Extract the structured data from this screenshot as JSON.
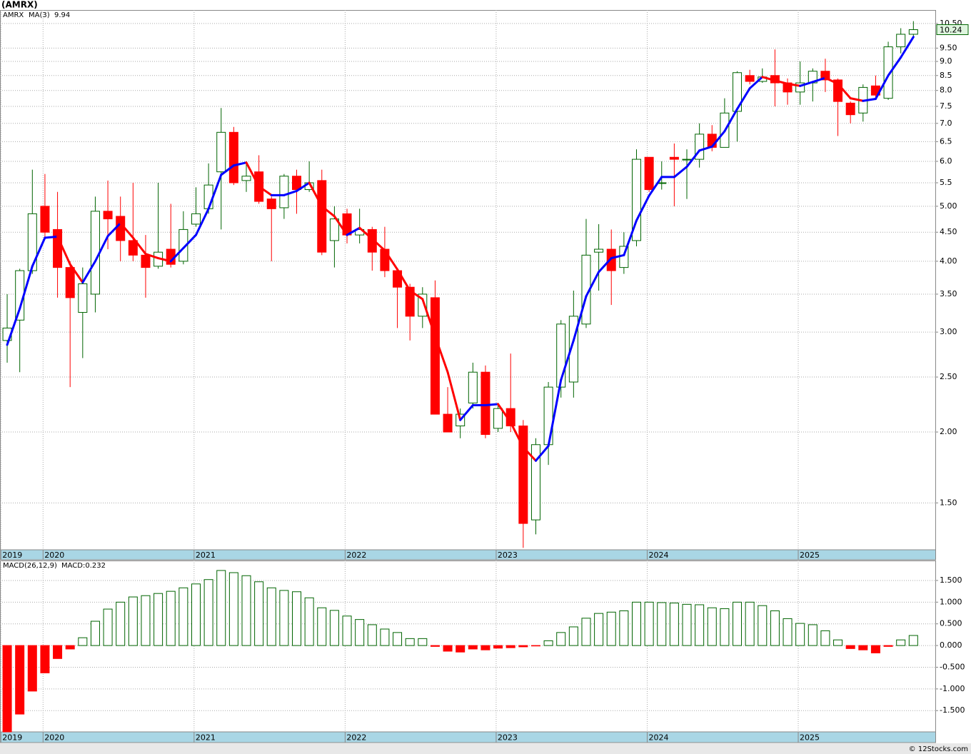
{
  "title": "(AMRX)",
  "footer": "© 12Stocks.com",
  "chart_data": [
    {
      "type": "candlestick",
      "symbol": "AMRX",
      "log_scale": true,
      "grid": true,
      "ylim": [
        1.24,
        11.09
      ],
      "yticks": [
        {
          "value": 10.5,
          "label": "10.50"
        },
        {
          "value": 9.5,
          "label": "9.50"
        },
        {
          "value": 9,
          "label": "9.0"
        },
        {
          "value": 8.5,
          "label": "8.5"
        },
        {
          "value": 8,
          "label": "8.0"
        },
        {
          "value": 7.5,
          "label": "7.5"
        },
        {
          "value": 7,
          "label": "7.0"
        },
        {
          "value": 6.5,
          "label": "6.5"
        },
        {
          "value": 6,
          "label": "6.0"
        },
        {
          "value": 5.5,
          "label": "5.5"
        },
        {
          "value": 5,
          "label": "5.00"
        },
        {
          "value": 4.5,
          "label": "4.50"
        },
        {
          "value": 4,
          "label": "4.00"
        },
        {
          "value": 3.5,
          "label": "3.50"
        },
        {
          "value": 3,
          "label": "3.00"
        },
        {
          "value": 2.5,
          "label": "2.50"
        },
        {
          "value": 2,
          "label": "2.00"
        },
        {
          "value": 1.5,
          "label": "1.50"
        }
      ],
      "xlim": [
        -0.57,
        73.74
      ],
      "xticks": [
        {
          "value": -0.5,
          "label": "2019"
        },
        {
          "value": 2.85,
          "label": "2020"
        },
        {
          "value": 14.85,
          "label": "2021"
        },
        {
          "value": 26.85,
          "label": "2022"
        },
        {
          "value": 38.85,
          "label": "2023"
        },
        {
          "value": 50.85,
          "label": "2024"
        },
        {
          "value": 62.85,
          "label": "2025"
        }
      ],
      "up_color": "#006400",
      "down_color": "#ff0000",
      "open": [
        2.9,
        3.15,
        3.85,
        5.0,
        4.55,
        3.9,
        3.25,
        3.5,
        4.9,
        4.8,
        4.35,
        4.1,
        3.92,
        4.2,
        4.0,
        4.65,
        4.95,
        5.75,
        6.75,
        5.55,
        5.75,
        5.15,
        4.97,
        5.65,
        5.35,
        5.55,
        4.35,
        4.85,
        4.45,
        4.55,
        4.2,
        3.85,
        3.6,
        3.2,
        3.45,
        2.15,
        2.05,
        2.25,
        2.55,
        2.03,
        2.2,
        2.05,
        1.4,
        1.9,
        2.4,
        2.45,
        3.1,
        4.15,
        4.2,
        3.9,
        4.35,
        6.1,
        5.5,
        6.1,
        6.05,
        6.05,
        6.7,
        6.35,
        7.35,
        8.5,
        8.3,
        8.5,
        8.25,
        7.95,
        8.25,
        8.65,
        8.35,
        7.6,
        7.3,
        8.15,
        7.75,
        9.55,
        10.05
      ],
      "high": [
        3.5,
        3.88,
        5.8,
        5.7,
        5.3,
        4.0,
        3.9,
        5.2,
        5.55,
        5.2,
        5.5,
        4.45,
        5.5,
        5.05,
        4.9,
        5.4,
        5.95,
        7.45,
        6.9,
        6.0,
        6.15,
        5.2,
        5.7,
        5.8,
        6.0,
        5.8,
        5.0,
        4.95,
        4.95,
        4.6,
        4.6,
        3.85,
        3.65,
        3.6,
        3.7,
        2.4,
        2.2,
        2.65,
        2.62,
        2.25,
        2.75,
        2.1,
        1.95,
        2.45,
        3.15,
        3.55,
        4.75,
        4.65,
        4.55,
        4.5,
        6.3,
        6.1,
        6.0,
        6.45,
        6.3,
        7.0,
        6.95,
        7.75,
        8.65,
        8.7,
        8.75,
        9.45,
        8.4,
        9.0,
        8.75,
        9.1,
        8.4,
        7.65,
        8.2,
        8.5,
        9.75,
        10.3,
        10.6
      ],
      "low": [
        2.65,
        2.55,
        3.8,
        4.4,
        3.45,
        2.4,
        2.7,
        3.25,
        4.2,
        4.0,
        4.0,
        3.45,
        3.88,
        3.9,
        3.95,
        4.6,
        4.85,
        4.55,
        5.45,
        5.3,
        5.05,
        4.0,
        4.75,
        4.85,
        5.3,
        4.1,
        3.9,
        4.3,
        4.3,
        3.85,
        3.75,
        3.05,
        2.9,
        3.05,
        2.15,
        2.0,
        1.95,
        2.2,
        1.95,
        2.0,
        2.0,
        1.25,
        1.32,
        1.75,
        2.3,
        2.3,
        3.05,
        3.55,
        3.35,
        3.8,
        4.25,
        5.3,
        5.35,
        5.0,
        5.15,
        5.85,
        6.25,
        6.35,
        6.5,
        8.2,
        8.25,
        7.5,
        7.55,
        7.55,
        7.65,
        7.95,
        6.65,
        7.0,
        7.05,
        7.75,
        7.7,
        9.3,
        9.95
      ],
      "close": [
        3.05,
        3.85,
        4.85,
        4.5,
        3.9,
        3.45,
        3.65,
        4.9,
        4.75,
        4.35,
        4.1,
        3.9,
        4.15,
        3.95,
        4.55,
        4.85,
        5.45,
        6.75,
        5.5,
        5.65,
        5.1,
        4.95,
        5.65,
        5.35,
        5.5,
        4.15,
        4.75,
        4.45,
        4.55,
        4.15,
        3.85,
        3.6,
        3.2,
        3.5,
        2.15,
        2.0,
        2.15,
        2.55,
        1.98,
        2.2,
        2.05,
        1.38,
        1.9,
        2.4,
        3.1,
        3.2,
        4.1,
        4.2,
        3.85,
        4.25,
        6.05,
        5.35,
        5.5,
        6.05,
        6.05,
        6.7,
        6.35,
        7.3,
        8.6,
        8.3,
        8.45,
        8.25,
        7.95,
        8.25,
        8.65,
        8.35,
        7.65,
        7.25,
        8.1,
        7.85,
        9.55,
        10.05,
        10.24
      ],
      "ma": {
        "name": "MA(3)",
        "value_label": "9.94",
        "up_color": "#0000ff",
        "down_color": "#ff0000",
        "values": [
          2.85,
          3.3,
          3.92,
          4.4,
          4.42,
          3.95,
          3.67,
          4.0,
          4.43,
          4.67,
          4.4,
          4.12,
          4.05,
          4.0,
          4.22,
          4.45,
          4.95,
          5.68,
          5.9,
          5.97,
          5.42,
          5.23,
          5.23,
          5.32,
          5.5,
          5.0,
          4.8,
          4.45,
          4.58,
          4.38,
          4.18,
          3.87,
          3.55,
          3.43,
          2.95,
          2.55,
          2.1,
          2.23,
          2.23,
          2.24,
          2.08,
          1.88,
          1.78,
          1.89,
          2.47,
          2.9,
          3.47,
          3.83,
          4.05,
          4.1,
          4.72,
          5.22,
          5.63,
          5.63,
          5.87,
          6.27,
          6.37,
          6.78,
          7.42,
          8.07,
          8.45,
          8.33,
          8.22,
          8.15,
          8.28,
          8.42,
          8.22,
          7.75,
          7.67,
          7.73,
          8.5,
          9.15,
          9.94
        ]
      }
    },
    {
      "type": "bar",
      "name": "MACD(26,12,9)",
      "value_label": "MACD:0.232",
      "grid": true,
      "ylim": [
        -1.99,
        1.96
      ],
      "yticks": [
        {
          "value": 1.5,
          "label": "1.500"
        },
        {
          "value": 1,
          "label": "1.000"
        },
        {
          "value": 0.5,
          "label": "0.500"
        },
        {
          "value": 0,
          "label": "0.000"
        },
        {
          "value": -0.5,
          "label": "-0.500"
        },
        {
          "value": -1,
          "label": "-1.000"
        },
        {
          "value": -1.5,
          "label": "-1.500"
        }
      ],
      "xlim": [
        -0.57,
        73.74
      ],
      "xticks": [
        {
          "value": -0.5,
          "label": "2019"
        },
        {
          "value": 2.85,
          "label": "2020"
        },
        {
          "value": 14.85,
          "label": "2021"
        },
        {
          "value": 26.85,
          "label": "2022"
        },
        {
          "value": 38.85,
          "label": "2023"
        },
        {
          "value": 50.85,
          "label": "2024"
        },
        {
          "value": 62.85,
          "label": "2025"
        }
      ],
      "up_color": "#006400",
      "down_color": "#ff0000",
      "values": [
        -1.99,
        -1.58,
        -1.05,
        -0.63,
        -0.3,
        -0.08,
        0.18,
        0.56,
        0.84,
        1.0,
        1.12,
        1.15,
        1.2,
        1.25,
        1.33,
        1.42,
        1.52,
        1.73,
        1.68,
        1.61,
        1.47,
        1.33,
        1.27,
        1.24,
        1.1,
        0.87,
        0.81,
        0.68,
        0.6,
        0.48,
        0.38,
        0.3,
        0.16,
        0.16,
        -0.02,
        -0.13,
        -0.15,
        -0.08,
        -0.1,
        -0.06,
        -0.05,
        -0.03,
        -0.01,
        0.11,
        0.3,
        0.43,
        0.63,
        0.74,
        0.77,
        0.8,
        1.0,
        1.0,
        0.99,
        0.98,
        0.95,
        0.94,
        0.87,
        0.85,
        1.0,
        1.0,
        0.92,
        0.8,
        0.62,
        0.51,
        0.48,
        0.34,
        0.13,
        -0.07,
        -0.1,
        -0.17,
        -0.02,
        0.13,
        0.232
      ]
    }
  ]
}
